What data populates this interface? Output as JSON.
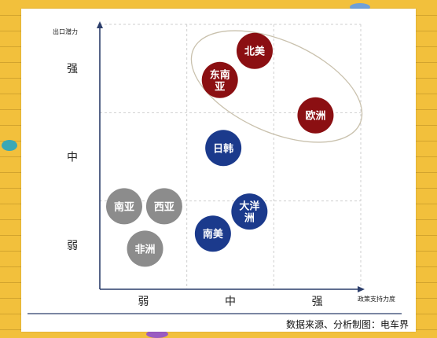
{
  "chart_data": {
    "type": "scatter",
    "title": "",
    "xlabel": "政策支持力度",
    "ylabel": "出口潜力",
    "x_categories": [
      "弱",
      "中",
      "强"
    ],
    "y_categories": [
      "弱",
      "中",
      "强"
    ],
    "xlim": [
      0,
      3
    ],
    "ylim": [
      0,
      3
    ],
    "grid": true,
    "points": [
      {
        "label": "北美",
        "x": 1.78,
        "y": 2.7,
        "group": "high"
      },
      {
        "label": "东南亚",
        "x": 1.38,
        "y": 2.37,
        "group": "high"
      },
      {
        "label": "欧洲",
        "x": 2.48,
        "y": 1.97,
        "group": "high"
      },
      {
        "label": "日韩",
        "x": 1.42,
        "y": 1.6,
        "group": "mid"
      },
      {
        "label": "大洋洲",
        "x": 1.72,
        "y": 0.88,
        "group": "mid"
      },
      {
        "label": "南美",
        "x": 1.3,
        "y": 0.63,
        "group": "mid"
      },
      {
        "label": "南亚",
        "x": 0.28,
        "y": 0.94,
        "group": "low"
      },
      {
        "label": "西亚",
        "x": 0.74,
        "y": 0.94,
        "group": "low"
      },
      {
        "label": "非洲",
        "x": 0.52,
        "y": 0.46,
        "group": "low"
      }
    ],
    "colors": {
      "high": "#8b0f12",
      "mid": "#1b3a8c",
      "low": "#8c8c8c",
      "ellipse": "#c9c1ad",
      "axis": "#2c3e6b"
    }
  },
  "footer": {
    "source": "数据来源、分析制图：电车界"
  }
}
